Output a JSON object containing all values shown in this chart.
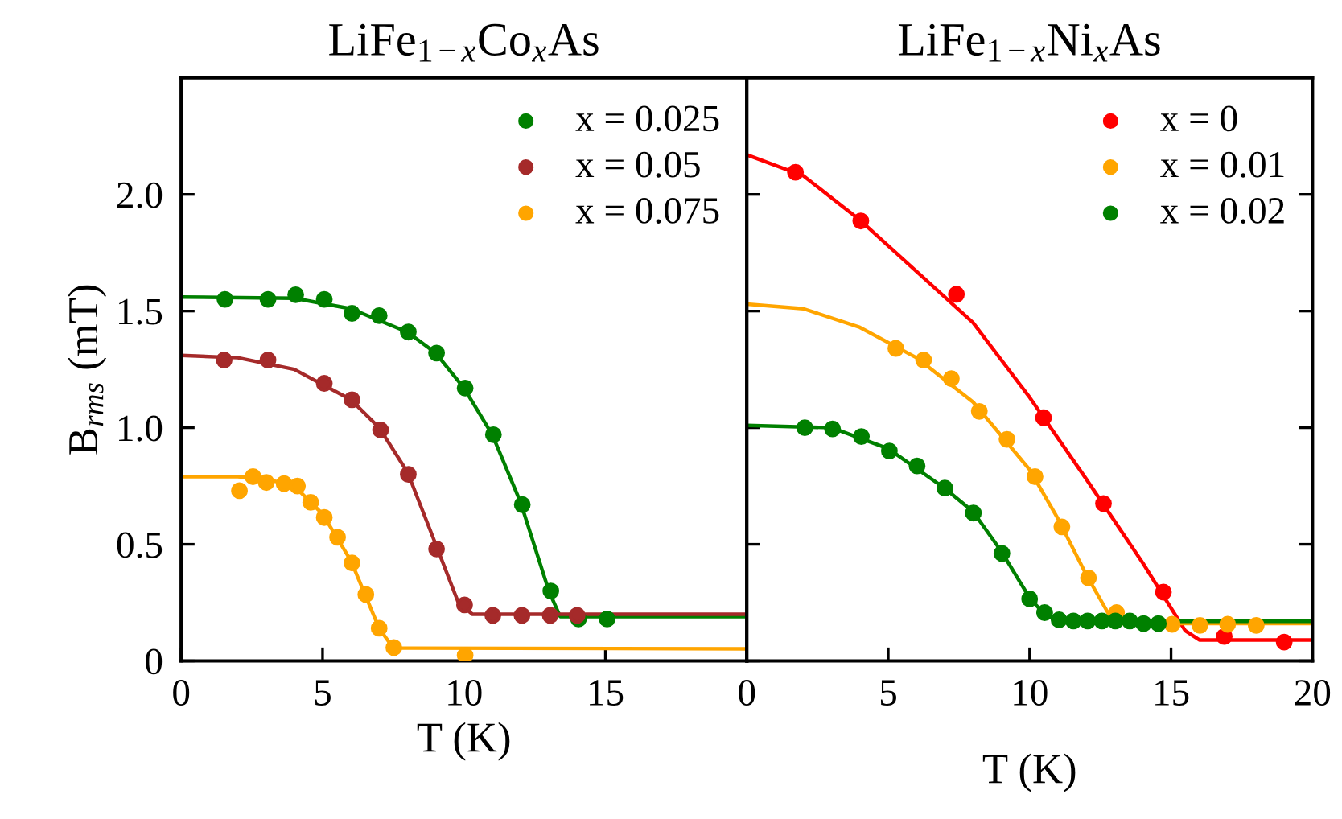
{
  "chart_data": [
    {
      "type": "scatter",
      "title": "LiFe$_{1−x}$Co$_{x}$As",
      "xlabel": "T (K)",
      "ylabel": "B$_{rms}$ (mT)",
      "xlim": [
        0,
        20
      ],
      "ylim": [
        0,
        2.5
      ],
      "xticks": [
        0,
        5,
        10,
        15,
        {
          "value": 20,
          "label": null
        }
      ],
      "yticks": [
        0,
        0.5,
        {
          "value": 1,
          "label": "1.0"
        },
        1.5,
        {
          "value": 2,
          "label": "2.0"
        }
      ],
      "legend": "top right",
      "grid": false,
      "marker": "circle",
      "series": [
        {
          "name": "x = 0.025",
          "color": "#008000",
          "x": [
            1.55,
            3.07,
            4.05,
            5.06,
            6.04,
            7.0,
            8.03,
            9.03,
            10.04,
            11.04,
            12.06,
            13.07,
            14.05,
            15.06
          ],
          "values": [
            1.55,
            1.55,
            1.57,
            1.55,
            1.49,
            1.48,
            1.41,
            1.32,
            1.17,
            0.97,
            0.67,
            0.3,
            0.18,
            0.18
          ]
        },
        {
          "name": "x = 0.05",
          "color": "#a52a2a",
          "x": [
            1.52,
            3.07,
            5.06,
            6.04,
            7.05,
            8.03,
            9.03,
            10.02,
            11.02,
            12.05,
            13.05,
            14.0
          ],
          "values": [
            1.29,
            1.29,
            1.19,
            1.12,
            0.99,
            0.8,
            0.48,
            0.24,
            0.195,
            0.195,
            0.195,
            0.195
          ]
        },
        {
          "name": "x = 0.075",
          "color": "#ffa500",
          "x": [
            2.06,
            2.54,
            3.01,
            3.64,
            4.11,
            4.58,
            5.06,
            5.53,
            6.04,
            6.53,
            7.0,
            7.52,
            10.04
          ],
          "values": [
            0.73,
            0.79,
            0.765,
            0.76,
            0.75,
            0.68,
            0.615,
            0.53,
            0.42,
            0.285,
            0.14,
            0.057,
            0.024
          ]
        },
        {
          "type": "line",
          "color": "#008000",
          "marker": "none",
          "x": [
            0,
            4,
            6,
            8,
            9,
            10,
            11,
            12,
            13,
            13.4,
            20
          ],
          "values": [
            1.56,
            1.555,
            1.51,
            1.41,
            1.32,
            1.17,
            0.97,
            0.68,
            0.3,
            0.19,
            0.19
          ]
        },
        {
          "type": "line",
          "color": "#a52a2a",
          "marker": "none",
          "x": [
            0,
            2,
            4,
            6,
            7,
            8,
            9,
            9.8,
            10.3,
            20
          ],
          "values": [
            1.31,
            1.3,
            1.25,
            1.12,
            1.0,
            0.81,
            0.5,
            0.25,
            0.2,
            0.2
          ]
        },
        {
          "type": "line",
          "color": "#ffa500",
          "marker": "none",
          "x": [
            0,
            2,
            3,
            4,
            5,
            6,
            7,
            7.5,
            20
          ],
          "values": [
            0.79,
            0.79,
            0.78,
            0.75,
            0.63,
            0.43,
            0.14,
            0.055,
            0.052
          ]
        }
      ]
    },
    {
      "type": "scatter",
      "title": "LiFe$_{1−x}$Ni$_{x}$As",
      "xlabel": "T (K)",
      "xlim": [
        0,
        20
      ],
      "ylim": [
        0,
        2.5
      ],
      "xticks": [
        0,
        5,
        10,
        15,
        20
      ],
      "yticks": [
        0,
        0.5,
        1,
        1.5,
        2
      ],
      "tick_labels": "x",
      "legend": "top right",
      "grid": false,
      "marker": "circle",
      "series": [
        {
          "name": "x = 0",
          "color": "#ff0000",
          "x": [
            1.72,
            4.03,
            7.41,
            10.49,
            12.61,
            14.73,
            16.88,
            19.0
          ],
          "values": [
            2.095,
            1.886,
            1.572,
            1.043,
            0.675,
            0.295,
            0.105,
            0.081
          ]
        },
        {
          "name": "x = 0.01",
          "color": "#ffa500",
          "x": [
            5.27,
            6.25,
            7.23,
            8.22,
            9.2,
            10.19,
            11.14,
            12.08,
            13.07,
            15.04,
            16.02,
            17.0,
            18.01
          ],
          "values": [
            1.34,
            1.29,
            1.21,
            1.07,
            0.95,
            0.79,
            0.575,
            0.356,
            0.207,
            0.157,
            0.152,
            0.157,
            0.152
          ]
        },
        {
          "name": "x = 0.02",
          "color": "#008000",
          "x": [
            2.05,
            3.03,
            4.05,
            5.04,
            6.02,
            7.0,
            8.01,
            9.02,
            10.0,
            10.53,
            11.04,
            11.55,
            12.05,
            12.56,
            13.03,
            13.54,
            14.03,
            14.55
          ],
          "values": [
            1.0,
            0.995,
            0.962,
            0.9,
            0.836,
            0.741,
            0.634,
            0.461,
            0.266,
            0.207,
            0.176,
            0.171,
            0.171,
            0.171,
            0.171,
            0.171,
            0.16,
            0.16
          ]
        },
        {
          "type": "line",
          "color": "#ff0000",
          "marker": "none",
          "x": [
            0,
            2,
            4,
            6,
            8,
            10,
            12,
            14,
            15.5,
            16,
            20
          ],
          "values": [
            2.17,
            2.08,
            1.89,
            1.67,
            1.45,
            1.13,
            0.78,
            0.42,
            0.13,
            0.09,
            0.09
          ]
        },
        {
          "type": "line",
          "color": "#ffa500",
          "marker": "none",
          "x": [
            0,
            2,
            4,
            6,
            8,
            10,
            11,
            12,
            12.8,
            13.3,
            20
          ],
          "values": [
            1.53,
            1.51,
            1.43,
            1.3,
            1.11,
            0.82,
            0.61,
            0.37,
            0.2,
            0.16,
            0.16
          ]
        },
        {
          "type": "line",
          "color": "#008000",
          "marker": "none",
          "x": [
            0,
            3,
            5,
            7,
            8,
            9,
            10,
            10.6,
            11.2,
            20
          ],
          "values": [
            1.01,
            1.0,
            0.91,
            0.74,
            0.64,
            0.47,
            0.27,
            0.19,
            0.17,
            0.17
          ]
        }
      ]
    }
  ]
}
